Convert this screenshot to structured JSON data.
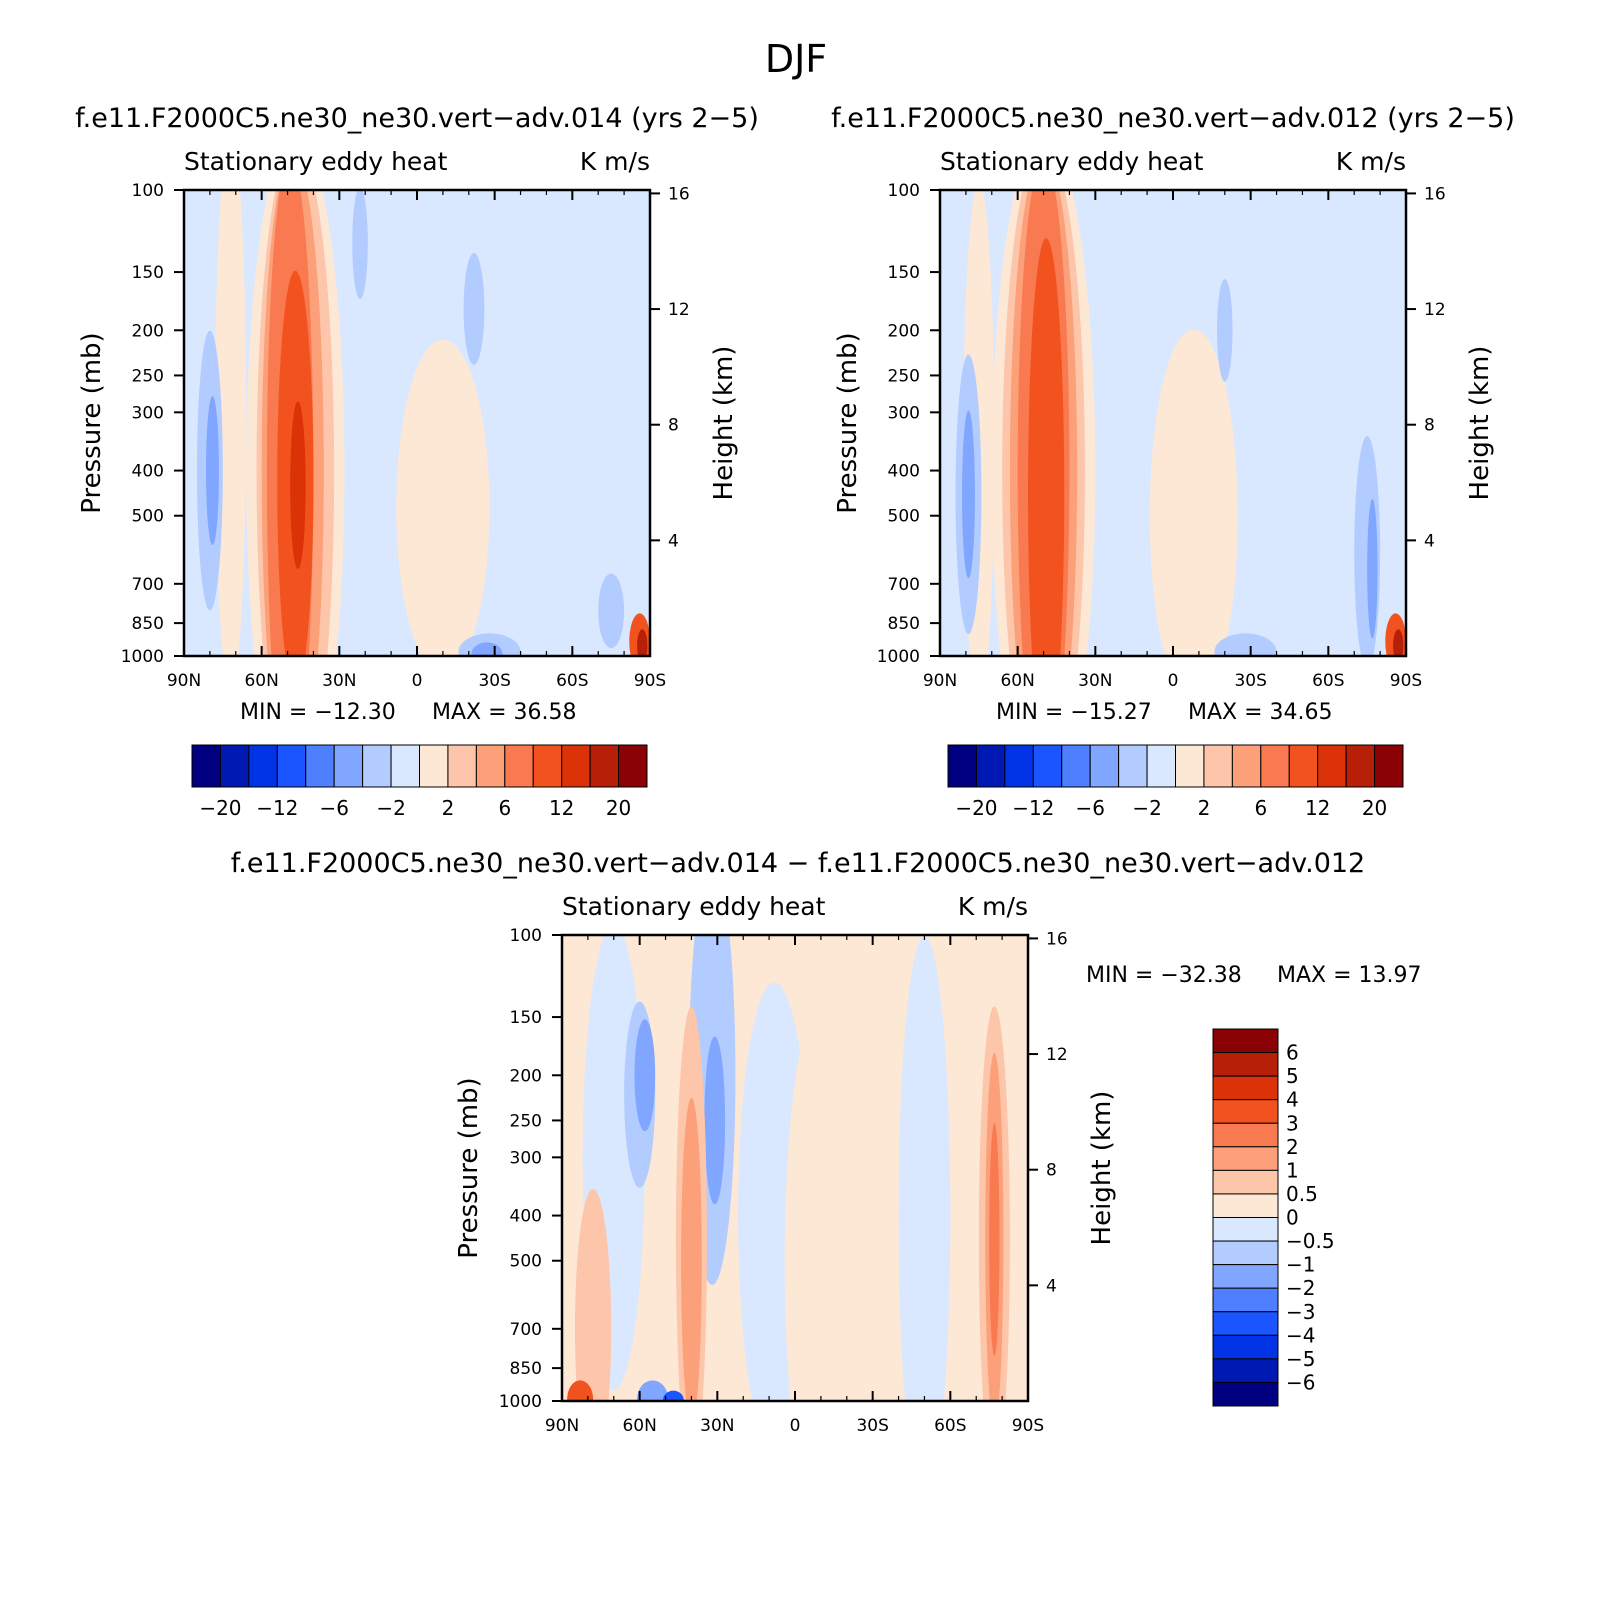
{
  "figure": {
    "title": "DJF"
  },
  "palette": [
    "#000080",
    "#0019b3",
    "#0033e6",
    "#1a55ff",
    "#4d7fff",
    "#80a6ff",
    "#b3ccff",
    "#d9e8ff",
    "#fde8d6",
    "#fdc6aa",
    "#fca07a",
    "#f97a50",
    "#f2531e",
    "#dc3208",
    "#b81f08",
    "#8a0205"
  ],
  "chart_data": [
    {
      "type": "contour",
      "id": "panel-014",
      "title": "f.e11.F2000C5.ne30_ne30.vert−adv.014 (yrs 2−5)",
      "subtitle": "Stationary eddy heat",
      "units": "K m/s",
      "xlabel": "",
      "ylabel": "Pressure (mb)",
      "y2label": "Height (km)",
      "x_ticks": [
        "90N",
        "60N",
        "30N",
        "0",
        "30S",
        "60S",
        "90S"
      ],
      "x_range": [
        90,
        -90
      ],
      "y_ticks": [
        "100",
        "150",
        "200",
        "250",
        "300",
        "400",
        "500",
        "700",
        "850",
        "1000"
      ],
      "y_values": [
        100,
        150,
        200,
        250,
        300,
        400,
        500,
        700,
        850,
        1000
      ],
      "y_range": [
        100,
        1000
      ],
      "y2_ticks": [
        "16",
        "12",
        "8",
        "4"
      ],
      "min_label": "MIN = −12.30",
      "max_label": "MAX = 36.58",
      "min": -12.3,
      "max": 36.58,
      "colorbar_levels": [
        -20,
        -16,
        -12,
        -8,
        -6,
        -4,
        -2,
        0,
        2,
        4,
        6,
        8,
        12,
        16,
        20
      ],
      "colorbar_labels": [
        "−20",
        "−12",
        "−6",
        "−2",
        "2",
        "6",
        "12",
        "20"
      ],
      "features": [
        {
          "description": "strong positive maximum near 45N throughout troposphere",
          "lat": 47,
          "value": 36.58
        },
        {
          "description": "negative minimum near 78N mid troposphere",
          "lat": 77,
          "value": -12.3
        }
      ]
    },
    {
      "type": "contour",
      "id": "panel-012",
      "title": "f.e11.F2000C5.ne30_ne30.vert−adv.012 (yrs 2−5)",
      "subtitle": "Stationary eddy heat",
      "units": "K m/s",
      "xlabel": "",
      "ylabel": "Pressure (mb)",
      "y2label": "Height (km)",
      "x_ticks": [
        "90N",
        "60N",
        "30N",
        "0",
        "30S",
        "60S",
        "90S"
      ],
      "x_range": [
        90,
        -90
      ],
      "y_ticks": [
        "100",
        "150",
        "200",
        "250",
        "300",
        "400",
        "500",
        "700",
        "850",
        "1000"
      ],
      "y_values": [
        100,
        150,
        200,
        250,
        300,
        400,
        500,
        700,
        850,
        1000
      ],
      "y_range": [
        100,
        1000
      ],
      "y2_ticks": [
        "16",
        "12",
        "8",
        "4"
      ],
      "min_label": "MIN = −15.27",
      "max_label": "MAX = 34.65",
      "min": -15.27,
      "max": 34.65,
      "colorbar_levels": [
        -20,
        -16,
        -12,
        -8,
        -6,
        -4,
        -2,
        0,
        2,
        4,
        6,
        8,
        12,
        16,
        20
      ],
      "colorbar_labels": [
        "−20",
        "−12",
        "−6",
        "−2",
        "2",
        "6",
        "12",
        "20"
      ],
      "features": [
        {
          "description": "strong positive maximum near 45N throughout troposphere",
          "lat": 47,
          "value": 34.65
        },
        {
          "description": "negative minimum near 78N mid troposphere",
          "lat": 77,
          "value": -15.27
        }
      ]
    },
    {
      "type": "contour",
      "id": "panel-diff",
      "title": "f.e11.F2000C5.ne30_ne30.vert−adv.014 − f.e11.F2000C5.ne30_ne30.vert−adv.012",
      "subtitle": "Stationary eddy heat",
      "units": "K m/s",
      "xlabel": "",
      "ylabel": "Pressure (mb)",
      "y2label": "Height (km)",
      "x_ticks": [
        "90N",
        "60N",
        "30N",
        "0",
        "30S",
        "60S",
        "90S"
      ],
      "x_range": [
        90,
        -90
      ],
      "y_ticks": [
        "100",
        "150",
        "200",
        "250",
        "300",
        "400",
        "500",
        "700",
        "850",
        "1000"
      ],
      "y_values": [
        100,
        150,
        200,
        250,
        300,
        400,
        500,
        700,
        850,
        1000
      ],
      "y_range": [
        100,
        1000
      ],
      "y2_ticks": [
        "16",
        "12",
        "8",
        "4"
      ],
      "min_label": "MIN = −32.38",
      "max_label": "MAX = 13.97",
      "min": -32.38,
      "max": 13.97,
      "colorbar_levels": [
        -6,
        -5,
        -4,
        -3,
        -2,
        -1,
        -0.5,
        0,
        0.5,
        1,
        2,
        3,
        4,
        5,
        6
      ],
      "colorbar_labels": [
        "6",
        "5",
        "4",
        "3",
        "2",
        "1",
        "0.5",
        "0",
        "−0.5",
        "−1",
        "−2",
        "−3",
        "−4",
        "−5",
        "−6"
      ],
      "features": [
        {
          "description": "positive band near 40N",
          "lat": 40,
          "value": 2.5
        },
        {
          "description": "negative band near 25N upper troposphere",
          "lat": 25,
          "value": -2.5
        },
        {
          "description": "positive maximum near 75S",
          "lat": -75,
          "value": 4
        }
      ]
    }
  ]
}
